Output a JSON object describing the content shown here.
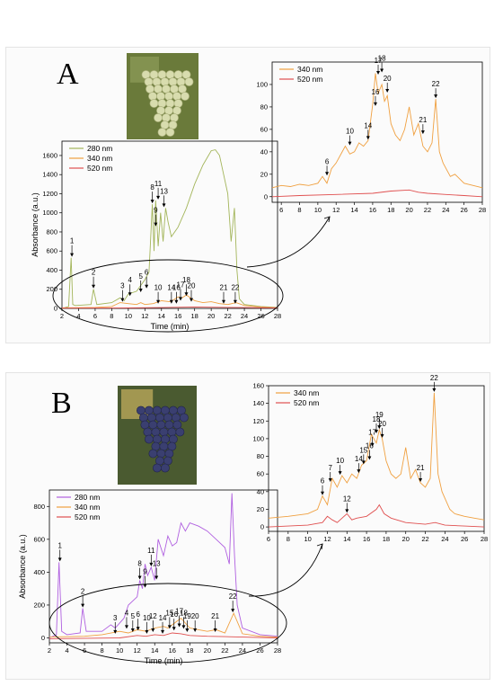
{
  "panels": [
    {
      "label": "A",
      "photo": "white grape bunch",
      "chart_data": {
        "type": "line",
        "xlabel": "Time (min)",
        "ylabel": "Absorbance (a.u.)",
        "xlim": [
          2,
          28
        ],
        "ylim": [
          0,
          1750
        ],
        "xticks": [
          2,
          4,
          6,
          8,
          10,
          12,
          14,
          16,
          18,
          20,
          22,
          24,
          26,
          28
        ],
        "yticks": [
          0,
          200,
          400,
          600,
          800,
          1000,
          1200,
          1400,
          1600
        ],
        "legend": "top-left",
        "series": [
          {
            "name": "280 nm",
            "color": "#a3b55a",
            "x": [
              2,
              2.8,
              3.1,
              3.3,
              3.6,
              5.5,
              5.8,
              6.2,
              8,
              9,
              9.5,
              10,
              11,
              12,
              12.5,
              12.9,
              13.1,
              13.3,
              13.6,
              13.9,
              14.2,
              14.5,
              14.8,
              15.2,
              16,
              17,
              18,
              19,
              20,
              20.5,
              21,
              21.5,
              22,
              22.4,
              22.8,
              23.1,
              23.4,
              24,
              26,
              28
            ],
            "y": [
              0,
              20,
              530,
              40,
              30,
              40,
              200,
              40,
              60,
              110,
              80,
              150,
              180,
              300,
              380,
              1090,
              600,
              1130,
              650,
              1000,
              700,
              1050,
              900,
              750,
              850,
              1050,
              1300,
              1500,
              1650,
              1660,
              1600,
              1400,
              1200,
              700,
              1050,
              400,
              100,
              40,
              20,
              10
            ]
          },
          {
            "name": "340 nm",
            "color": "#f0a040",
            "x": [
              2,
              6,
              8,
              9,
              10,
              11,
              11.5,
              12,
              13,
              14,
              15,
              15.5,
              16,
              16.5,
              17,
              18,
              19,
              20,
              21,
              22,
              23,
              24,
              26,
              28
            ],
            "y": [
              5,
              10,
              20,
              60,
              50,
              40,
              60,
              40,
              50,
              80,
              70,
              90,
              120,
              110,
              140,
              80,
              60,
              70,
              50,
              40,
              60,
              30,
              15,
              5
            ]
          },
          {
            "name": "520 nm",
            "color": "#e05050",
            "x": [
              2,
              10,
              14,
              18,
              20,
              22,
              24,
              28
            ],
            "y": [
              3,
              5,
              8,
              15,
              12,
              10,
              8,
              5
            ]
          }
        ],
        "peaks": [
          {
            "id": "1",
            "x": 3.2,
            "y": 530
          },
          {
            "id": "2",
            "x": 5.8,
            "y": 200
          },
          {
            "id": "3",
            "x": 9.3,
            "y": 60
          },
          {
            "id": "4",
            "x": 10.2,
            "y": 120
          },
          {
            "id": "5",
            "x": 11.5,
            "y": 160
          },
          {
            "id": "6",
            "x": 12.2,
            "y": 200
          },
          {
            "id": "8",
            "x": 12.9,
            "y": 1090
          },
          {
            "id": "9",
            "x": 13.3,
            "y": 850
          },
          {
            "id": "11",
            "x": 13.6,
            "y": 1130
          },
          {
            "id": "13",
            "x": 14.3,
            "y": 1050
          },
          {
            "id": "10",
            "x": 13.6,
            "y": 40
          },
          {
            "id": "14",
            "x": 15.2,
            "y": 40
          },
          {
            "id": "16",
            "x": 15.8,
            "y": 40
          },
          {
            "id": "17",
            "x": 16.3,
            "y": 70
          },
          {
            "id": "18",
            "x": 17,
            "y": 120
          },
          {
            "id": "20",
            "x": 17.6,
            "y": 60
          },
          {
            "id": "21",
            "x": 21.5,
            "y": 40
          },
          {
            "id": "22",
            "x": 22.9,
            "y": 40
          }
        ]
      },
      "inset_data": {
        "type": "line",
        "xlim": [
          5,
          28
        ],
        "ylim": [
          -5,
          120
        ],
        "xticks": [
          6,
          8,
          10,
          12,
          14,
          16,
          18,
          20,
          22,
          24,
          26,
          28
        ],
        "yticks": [
          0,
          20,
          40,
          60,
          80,
          100
        ],
        "legend": "top-left",
        "series": [
          {
            "name": "340 nm",
            "color": "#f0a040",
            "x": [
              5,
              6,
              7,
              8,
              9,
              10,
              10.5,
              11,
              11.5,
              12,
              13,
              13.5,
              14,
              14.5,
              15,
              15.5,
              16,
              16.3,
              16.6,
              17,
              17.3,
              17.6,
              18,
              18.5,
              19,
              19.5,
              20,
              20.5,
              21,
              21.5,
              22,
              22.5,
              22.9,
              23.3,
              23.7,
              24.5,
              25,
              26,
              27,
              28
            ],
            "y": [
              8,
              10,
              9,
              11,
              10,
              12,
              18,
              12,
              25,
              30,
              45,
              38,
              40,
              48,
              45,
              50,
              82,
              110,
              92,
              100,
              85,
              90,
              65,
              55,
              50,
              60,
              80,
              55,
              65,
              45,
              40,
              48,
              87,
              40,
              30,
              18,
              20,
              12,
              10,
              8
            ]
          },
          {
            "name": "520 nm",
            "color": "#e05050",
            "x": [
              5,
              8,
              12,
              16,
              18,
              20,
              21,
              22,
              24,
              26,
              28
            ],
            "y": [
              0,
              1,
              2,
              3,
              5,
              6,
              4,
              3,
              2,
              1,
              0
            ]
          }
        ],
        "peaks": [
          {
            "id": "6",
            "x": 11,
            "y": 18
          },
          {
            "id": "10",
            "x": 13.5,
            "y": 45
          },
          {
            "id": "14",
            "x": 15.5,
            "y": 50
          },
          {
            "id": "16",
            "x": 16.3,
            "y": 80
          },
          {
            "id": "17",
            "x": 16.6,
            "y": 108
          },
          {
            "id": "18",
            "x": 17,
            "y": 110
          },
          {
            "id": "20",
            "x": 17.6,
            "y": 92
          },
          {
            "id": "21",
            "x": 21.5,
            "y": 55
          },
          {
            "id": "22",
            "x": 22.9,
            "y": 87
          }
        ]
      }
    },
    {
      "label": "B",
      "photo": "red grape bunch",
      "chart_data": {
        "type": "line",
        "xlabel": "Time (min)",
        "ylabel": "Absorbance (a.u.)",
        "xlim": [
          2,
          28
        ],
        "ylim": [
          -30,
          900
        ],
        "xticks": [
          2,
          4,
          6,
          8,
          10,
          12,
          14,
          16,
          18,
          20,
          22,
          24,
          26,
          28
        ],
        "yticks": [
          0,
          200,
          400,
          600,
          800
        ],
        "legend": "top-left",
        "series": [
          {
            "name": "280 nm",
            "color": "#b060e0",
            "x": [
              2,
              2.8,
              3.1,
              3.4,
              4,
              5.5,
              5.8,
              6.2,
              8,
              9,
              9.5,
              10.5,
              11,
              12,
              12.3,
              12.6,
              12.9,
              13.2,
              13.6,
              14,
              14.4,
              15,
              15.5,
              16,
              16.5,
              17,
              17.5,
              18,
              19,
              20,
              21,
              22,
              22.5,
              22.8,
              23.1,
              23.4,
              24,
              26,
              28
            ],
            "y": [
              0,
              20,
              460,
              40,
              20,
              30,
              180,
              40,
              40,
              80,
              60,
              120,
              200,
              250,
              350,
              300,
              450,
              380,
              430,
              350,
              600,
              500,
              620,
              560,
              580,
              700,
              650,
              700,
              680,
              650,
              600,
              550,
              450,
              880,
              500,
              200,
              60,
              20,
              10
            ]
          },
          {
            "name": "340 nm",
            "color": "#f0a040",
            "x": [
              2,
              6,
              8,
              10,
              11,
              12,
              13,
              14,
              15,
              15.5,
              16,
              17,
              18,
              19,
              20,
              21,
              22,
              23,
              24,
              26,
              28
            ],
            "y": [
              5,
              10,
              20,
              40,
              30,
              50,
              40,
              60,
              70,
              60,
              80,
              120,
              60,
              50,
              40,
              50,
              30,
              150,
              25,
              10,
              5
            ]
          },
          {
            "name": "520 nm",
            "color": "#e05050",
            "x": [
              2,
              10,
              12,
              13,
              14,
              15,
              16,
              17,
              18,
              20,
              22,
              24,
              28
            ],
            "y": [
              -5,
              0,
              15,
              10,
              20,
              15,
              30,
              25,
              15,
              10,
              8,
              5,
              0
            ]
          }
        ],
        "peaks": [
          {
            "id": "1",
            "x": 3.2,
            "y": 460
          },
          {
            "id": "2",
            "x": 5.8,
            "y": 180
          },
          {
            "id": "3",
            "x": 9.5,
            "y": 20
          },
          {
            "id": "4",
            "x": 10.8,
            "y": 50
          },
          {
            "id": "5",
            "x": 11.5,
            "y": 30
          },
          {
            "id": "6",
            "x": 12.1,
            "y": 40
          },
          {
            "id": "8",
            "x": 12.3,
            "y": 350
          },
          {
            "id": "9",
            "x": 12.9,
            "y": 300
          },
          {
            "id": "11",
            "x": 13.6,
            "y": 430
          },
          {
            "id": "13",
            "x": 14.2,
            "y": 350
          },
          {
            "id": "10",
            "x": 13.1,
            "y": 20
          },
          {
            "id": "12",
            "x": 13.8,
            "y": 30
          },
          {
            "id": "14",
            "x": 14.9,
            "y": 20
          },
          {
            "id": "15",
            "x": 15.7,
            "y": 50
          },
          {
            "id": "16",
            "x": 16.2,
            "y": 40
          },
          {
            "id": "17",
            "x": 16.8,
            "y": 60
          },
          {
            "id": "18",
            "x": 17.3,
            "y": 50
          },
          {
            "id": "19",
            "x": 17.7,
            "y": 30
          },
          {
            "id": "20",
            "x": 18.6,
            "y": 30
          },
          {
            "id": "21",
            "x": 20.9,
            "y": 30
          },
          {
            "id": "22",
            "x": 22.9,
            "y": 150
          }
        ]
      },
      "inset_data": {
        "type": "line",
        "xlim": [
          6,
          28
        ],
        "ylim": [
          -5,
          160
        ],
        "xticks": [
          6,
          8,
          10,
          12,
          14,
          16,
          18,
          20,
          22,
          24,
          26,
          28
        ],
        "yticks": [
          0,
          20,
          40,
          60,
          80,
          100,
          120,
          140,
          160
        ],
        "legend": "top-left",
        "series": [
          {
            "name": "340 nm",
            "color": "#f0a040",
            "x": [
              6,
              8,
              10,
              11,
              11.5,
              12,
              12.5,
              13,
              13.5,
              14,
              14.5,
              15,
              15.5,
              16,
              16.5,
              17,
              17.3,
              17.6,
              18,
              18.5,
              19,
              19.5,
              20,
              20.5,
              21,
              21.5,
              22,
              22.5,
              22.9,
              23.3,
              23.7,
              24.5,
              25,
              26,
              27,
              28
            ],
            "y": [
              10,
              12,
              15,
              20,
              35,
              25,
              55,
              45,
              58,
              50,
              60,
              55,
              70,
              75,
              105,
              95,
              110,
              100,
              75,
              60,
              55,
              60,
              90,
              55,
              65,
              50,
              45,
              55,
              152,
              60,
              40,
              20,
              15,
              12,
              10,
              8
            ]
          },
          {
            "name": "520 nm",
            "color": "#e05050",
            "x": [
              6,
              10,
              11.5,
              12,
              12.5,
              13,
              13.5,
              14,
              14.5,
              15,
              16,
              17,
              17.3,
              17.8,
              18.5,
              20,
              22,
              23,
              24,
              26,
              28
            ],
            "y": [
              0,
              2,
              5,
              12,
              8,
              5,
              10,
              15,
              8,
              10,
              12,
              20,
              25,
              15,
              10,
              5,
              3,
              5,
              2,
              1,
              0
            ]
          }
        ],
        "peaks": [
          {
            "id": "6",
            "x": 11.5,
            "y": 35
          },
          {
            "id": "7",
            "x": 12.3,
            "y": 50
          },
          {
            "id": "10",
            "x": 13.3,
            "y": 58
          },
          {
            "id": "12",
            "x": 14,
            "y": 15
          },
          {
            "id": "14",
            "x": 15.2,
            "y": 60
          },
          {
            "id": "15",
            "x": 15.7,
            "y": 70
          },
          {
            "id": "16",
            "x": 16.3,
            "y": 75
          },
          {
            "id": "17",
            "x": 16.6,
            "y": 90
          },
          {
            "id": "18",
            "x": 17,
            "y": 105
          },
          {
            "id": "19",
            "x": 17.3,
            "y": 110
          },
          {
            "id": "20",
            "x": 17.6,
            "y": 100
          },
          {
            "id": "21",
            "x": 21.5,
            "y": 50
          },
          {
            "id": "22",
            "x": 22.9,
            "y": 152
          }
        ]
      }
    }
  ]
}
